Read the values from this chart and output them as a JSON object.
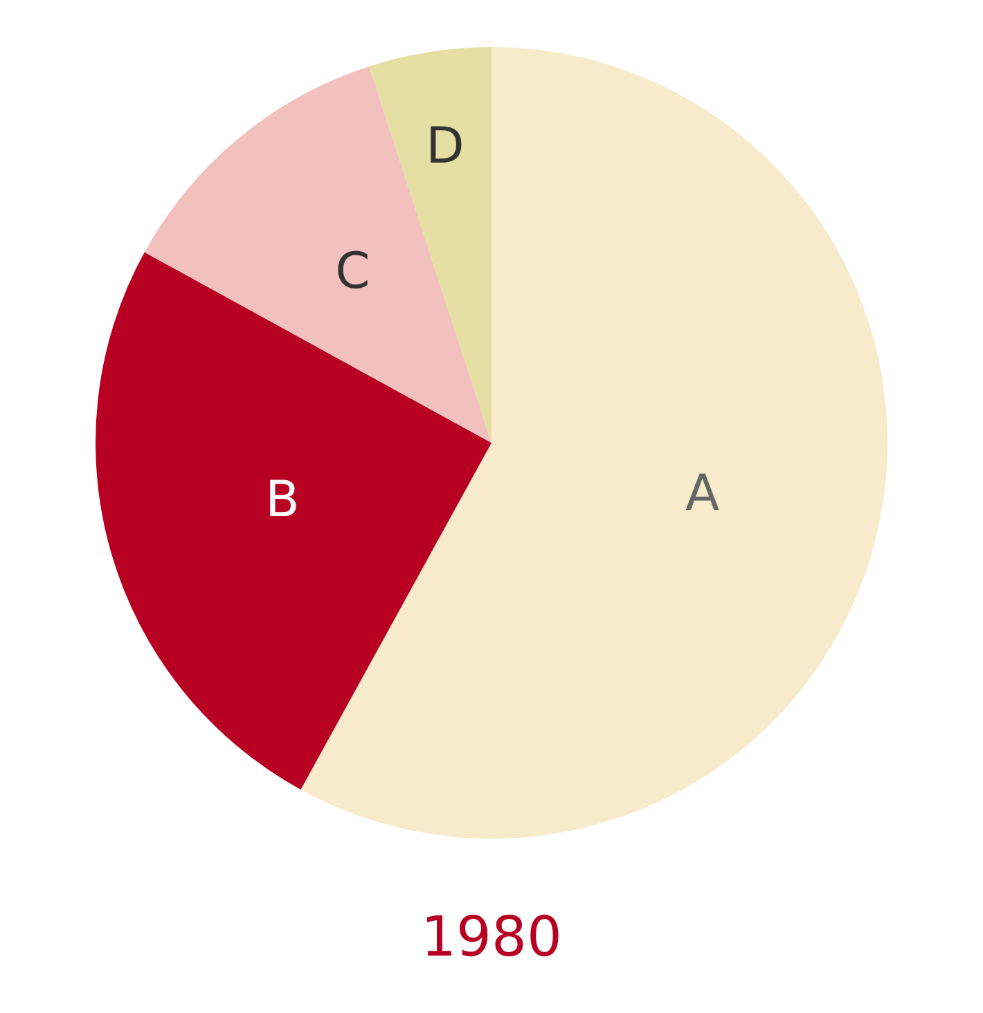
{
  "chart_data": {
    "type": "pie",
    "title": "1980",
    "categories": [
      "A",
      "B",
      "C",
      "D"
    ],
    "values": [
      58,
      25,
      12,
      5
    ],
    "colors": [
      "#f7ebcb",
      "#b80023",
      "#f2c1bd",
      "#e6dfa3"
    ],
    "legend": false
  }
}
